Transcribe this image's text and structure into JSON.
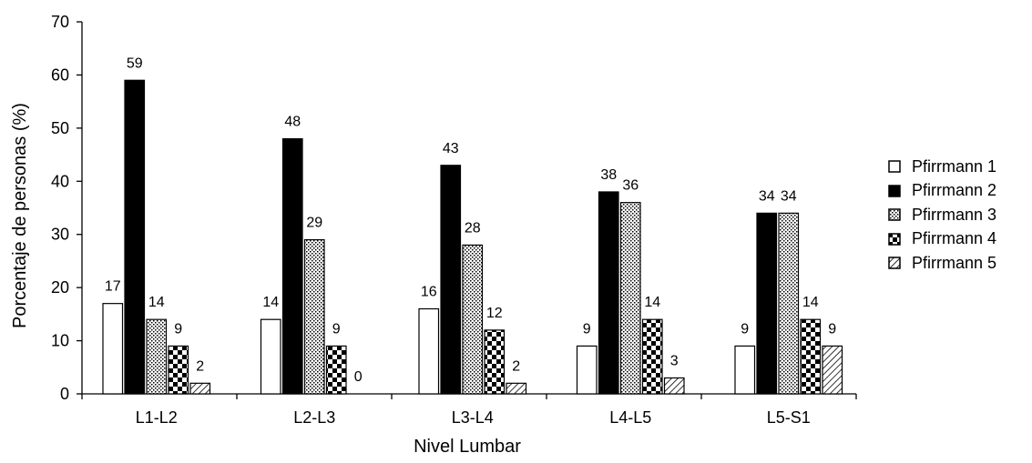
{
  "chart_data": {
    "type": "bar",
    "xlabel": "Nivel Lumbar",
    "ylabel": "Porcentaje de personas (%)",
    "ylim": [
      0,
      70
    ],
    "yticks": [
      0,
      10,
      20,
      30,
      40,
      50,
      60,
      70
    ],
    "categories": [
      "L1-L2",
      "L2-L3",
      "L3-L4",
      "L4-L5",
      "L5-S1"
    ],
    "series": [
      {
        "name": "Pfirrmann 1",
        "pattern": "white",
        "values": [
          17,
          14,
          16,
          9,
          9
        ],
        "labels": [
          "17",
          "14",
          "16",
          "9",
          "9"
        ]
      },
      {
        "name": "Pfirrmann 2",
        "pattern": "black",
        "values": [
          59,
          48,
          43,
          38,
          34
        ],
        "labels": [
          "59",
          "48",
          "43",
          "38",
          "34"
        ]
      },
      {
        "name": "Pfirrmann 3",
        "pattern": "dots",
        "values": [
          14,
          29,
          28,
          36,
          34
        ],
        "labels": [
          "14",
          "29",
          "28",
          "36",
          "34"
        ]
      },
      {
        "name": "Pfirrmann 4",
        "pattern": "checker",
        "values": [
          9,
          9,
          12,
          14,
          14
        ],
        "labels": [
          "9",
          "9",
          "12",
          "14",
          "14"
        ]
      },
      {
        "name": "Pfirrmann 5",
        "pattern": "hatch",
        "values": [
          2,
          0,
          2,
          3,
          9
        ],
        "labels": [
          "2",
          "0",
          "2",
          "3",
          "9"
        ]
      }
    ],
    "legend_position": "right",
    "grid": false,
    "colors": {
      "axis": "#000000",
      "fill_dark": "#000000",
      "fill_light": "#ffffff"
    }
  }
}
